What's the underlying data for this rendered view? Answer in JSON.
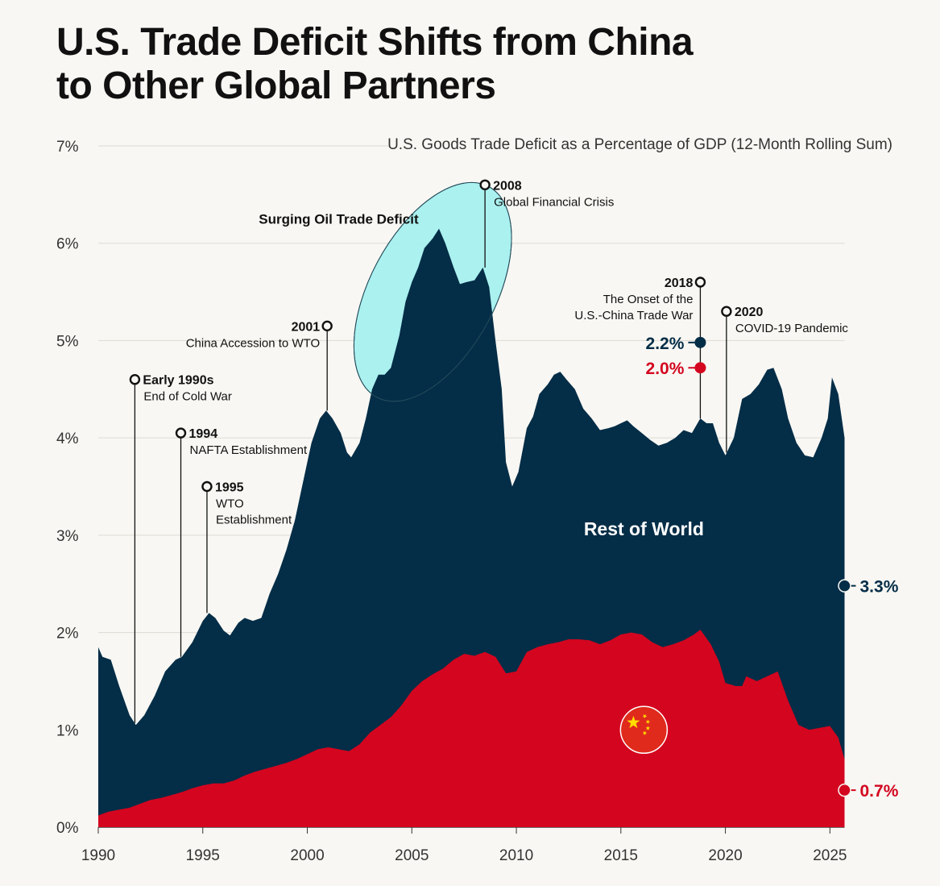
{
  "title_lines": [
    "U.S. Trade Deficit Shifts from China",
    "to Other Global Partners"
  ],
  "colors": {
    "background": "#f8f7f3",
    "rest_of_world": "#042d47",
    "china": "#d4051f",
    "oil_highlight": "#a7f1ee",
    "grid": "#dedbd3"
  },
  "chart_data": {
    "type": "area",
    "subtitle": "U.S. Goods Trade Deficit as a Percentage of GDP (12-Month Rolling Sum)",
    "ylim": [
      0,
      7
    ],
    "xlim": [
      1990,
      2025.7
    ],
    "y_ticks": [
      {
        "value": 0,
        "label": "0%"
      },
      {
        "value": 1,
        "label": "1%"
      },
      {
        "value": 2,
        "label": "2%"
      },
      {
        "value": 3,
        "label": "3%"
      },
      {
        "value": 4,
        "label": "4%"
      },
      {
        "value": 5,
        "label": "5%"
      },
      {
        "value": 6,
        "label": "6%"
      },
      {
        "value": 7,
        "label": "7%"
      }
    ],
    "x_ticks": [
      {
        "value": 1990,
        "label": "1990"
      },
      {
        "value": 1995,
        "label": "1995"
      },
      {
        "value": 2000,
        "label": "2000"
      },
      {
        "value": 2005,
        "label": "2005"
      },
      {
        "value": 2010,
        "label": "2010"
      },
      {
        "value": 2015,
        "label": "2015"
      },
      {
        "value": 2020,
        "label": "2020"
      },
      {
        "value": 2025,
        "label": "2025"
      }
    ],
    "series": [
      {
        "name": "Total (Rest of World + China)",
        "label": "Rest of World",
        "points": [
          [
            1990.0,
            1.85
          ],
          [
            1990.2,
            1.75
          ],
          [
            1990.6,
            1.72
          ],
          [
            1991.0,
            1.45
          ],
          [
            1991.5,
            1.15
          ],
          [
            1991.8,
            1.05
          ],
          [
            1992.2,
            1.15
          ],
          [
            1992.7,
            1.35
          ],
          [
            1993.2,
            1.6
          ],
          [
            1993.7,
            1.72
          ],
          [
            1994.0,
            1.75
          ],
          [
            1994.5,
            1.9
          ],
          [
            1995.0,
            2.12
          ],
          [
            1995.3,
            2.2
          ],
          [
            1995.6,
            2.15
          ],
          [
            1996.0,
            2.02
          ],
          [
            1996.3,
            1.97
          ],
          [
            1996.7,
            2.1
          ],
          [
            1997.0,
            2.15
          ],
          [
            1997.4,
            2.12
          ],
          [
            1997.8,
            2.15
          ],
          [
            1998.2,
            2.4
          ],
          [
            1998.6,
            2.6
          ],
          [
            1999.0,
            2.85
          ],
          [
            1999.4,
            3.15
          ],
          [
            1999.8,
            3.55
          ],
          [
            2000.2,
            3.95
          ],
          [
            2000.6,
            4.2
          ],
          [
            2000.9,
            4.28
          ],
          [
            2001.2,
            4.2
          ],
          [
            2001.6,
            4.05
          ],
          [
            2001.9,
            3.85
          ],
          [
            2002.1,
            3.8
          ],
          [
            2002.5,
            3.95
          ],
          [
            2002.8,
            4.2
          ],
          [
            2003.1,
            4.5
          ],
          [
            2003.4,
            4.65
          ],
          [
            2003.7,
            4.65
          ],
          [
            2004.0,
            4.72
          ],
          [
            2004.4,
            5.05
          ],
          [
            2004.7,
            5.4
          ],
          [
            2005.0,
            5.6
          ],
          [
            2005.3,
            5.75
          ],
          [
            2005.6,
            5.95
          ],
          [
            2006.0,
            6.05
          ],
          [
            2006.3,
            6.15
          ],
          [
            2006.6,
            6.0
          ],
          [
            2007.0,
            5.75
          ],
          [
            2007.3,
            5.58
          ],
          [
            2007.6,
            5.6
          ],
          [
            2008.0,
            5.62
          ],
          [
            2008.4,
            5.75
          ],
          [
            2008.7,
            5.55
          ],
          [
            2009.0,
            5.0
          ],
          [
            2009.3,
            4.5
          ],
          [
            2009.5,
            3.75
          ],
          [
            2009.8,
            3.5
          ],
          [
            2010.1,
            3.65
          ],
          [
            2010.5,
            4.1
          ],
          [
            2010.8,
            4.22
          ],
          [
            2011.1,
            4.45
          ],
          [
            2011.5,
            4.55
          ],
          [
            2011.8,
            4.65
          ],
          [
            2012.1,
            4.68
          ],
          [
            2012.4,
            4.6
          ],
          [
            2012.8,
            4.5
          ],
          [
            2013.2,
            4.3
          ],
          [
            2013.6,
            4.2
          ],
          [
            2014.0,
            4.08
          ],
          [
            2014.4,
            4.1
          ],
          [
            2014.7,
            4.12
          ],
          [
            2015.0,
            4.15
          ],
          [
            2015.3,
            4.18
          ],
          [
            2015.6,
            4.12
          ],
          [
            2016.0,
            4.05
          ],
          [
            2016.4,
            3.98
          ],
          [
            2016.8,
            3.92
          ],
          [
            2017.2,
            3.95
          ],
          [
            2017.6,
            4.0
          ],
          [
            2018.0,
            4.08
          ],
          [
            2018.4,
            4.05
          ],
          [
            2018.8,
            4.2
          ],
          [
            2019.1,
            4.15
          ],
          [
            2019.4,
            4.15
          ],
          [
            2019.7,
            3.95
          ],
          [
            2020.0,
            3.82
          ],
          [
            2020.4,
            4.0
          ],
          [
            2020.8,
            4.4
          ],
          [
            2021.2,
            4.45
          ],
          [
            2021.6,
            4.55
          ],
          [
            2022.0,
            4.7
          ],
          [
            2022.3,
            4.72
          ],
          [
            2022.7,
            4.5
          ],
          [
            2023.0,
            4.2
          ],
          [
            2023.4,
            3.95
          ],
          [
            2023.8,
            3.82
          ],
          [
            2024.2,
            3.8
          ],
          [
            2024.6,
            4.0
          ],
          [
            2024.9,
            4.2
          ],
          [
            2025.1,
            4.62
          ],
          [
            2025.4,
            4.45
          ],
          [
            2025.7,
            4.0
          ]
        ]
      },
      {
        "name": "China",
        "points": [
          [
            1990.0,
            0.12
          ],
          [
            1990.5,
            0.16
          ],
          [
            1991.0,
            0.18
          ],
          [
            1991.5,
            0.2
          ],
          [
            1992.0,
            0.24
          ],
          [
            1992.5,
            0.28
          ],
          [
            1993.0,
            0.3
          ],
          [
            1993.5,
            0.33
          ],
          [
            1994.0,
            0.36
          ],
          [
            1994.5,
            0.4
          ],
          [
            1995.0,
            0.43
          ],
          [
            1995.5,
            0.45
          ],
          [
            1996.0,
            0.45
          ],
          [
            1996.5,
            0.48
          ],
          [
            1997.0,
            0.53
          ],
          [
            1997.5,
            0.57
          ],
          [
            1998.0,
            0.6
          ],
          [
            1998.5,
            0.63
          ],
          [
            1999.0,
            0.66
          ],
          [
            1999.5,
            0.7
          ],
          [
            2000.0,
            0.75
          ],
          [
            2000.5,
            0.8
          ],
          [
            2001.0,
            0.82
          ],
          [
            2001.5,
            0.8
          ],
          [
            2002.0,
            0.78
          ],
          [
            2002.5,
            0.85
          ],
          [
            2003.0,
            0.97
          ],
          [
            2003.5,
            1.05
          ],
          [
            2004.0,
            1.13
          ],
          [
            2004.5,
            1.25
          ],
          [
            2005.0,
            1.4
          ],
          [
            2005.5,
            1.5
          ],
          [
            2006.0,
            1.57
          ],
          [
            2006.5,
            1.63
          ],
          [
            2007.0,
            1.72
          ],
          [
            2007.5,
            1.78
          ],
          [
            2008.0,
            1.76
          ],
          [
            2008.5,
            1.8
          ],
          [
            2009.0,
            1.75
          ],
          [
            2009.5,
            1.58
          ],
          [
            2010.0,
            1.6
          ],
          [
            2010.5,
            1.8
          ],
          [
            2011.0,
            1.85
          ],
          [
            2011.5,
            1.88
          ],
          [
            2012.0,
            1.9
          ],
          [
            2012.5,
            1.93
          ],
          [
            2013.0,
            1.93
          ],
          [
            2013.5,
            1.92
          ],
          [
            2014.0,
            1.88
          ],
          [
            2014.5,
            1.92
          ],
          [
            2015.0,
            1.98
          ],
          [
            2015.5,
            2.0
          ],
          [
            2016.0,
            1.98
          ],
          [
            2016.5,
            1.9
          ],
          [
            2017.0,
            1.85
          ],
          [
            2017.5,
            1.88
          ],
          [
            2018.0,
            1.92
          ],
          [
            2018.5,
            1.98
          ],
          [
            2018.8,
            2.03
          ],
          [
            2019.3,
            1.88
          ],
          [
            2019.7,
            1.7
          ],
          [
            2020.0,
            1.48
          ],
          [
            2020.5,
            1.45
          ],
          [
            2020.8,
            1.45
          ],
          [
            2021.0,
            1.55
          ],
          [
            2021.5,
            1.5
          ],
          [
            2022.0,
            1.55
          ],
          [
            2022.5,
            1.6
          ],
          [
            2023.0,
            1.3
          ],
          [
            2023.5,
            1.05
          ],
          [
            2024.0,
            1.0
          ],
          [
            2024.5,
            1.02
          ],
          [
            2025.0,
            1.04
          ],
          [
            2025.4,
            0.92
          ],
          [
            2025.7,
            0.7
          ]
        ]
      }
    ],
    "regions": [
      {
        "label": "Rest of World",
        "x": 2016.1,
        "y": 3.0
      },
      {
        "label": "Surging Oil Trade Deficit",
        "x": 2006.0,
        "y": 5.5,
        "x_label": 2001.5,
        "y_label": 6.2
      }
    ],
    "annotations": [
      {
        "year": 1991.75,
        "top": 4.6,
        "bottom": 1.07,
        "title": "Early 1990s",
        "lines": [
          "End of Cold War"
        ]
      },
      {
        "year": 1993.95,
        "top": 4.05,
        "bottom": 1.75,
        "title": "1994",
        "lines": [
          "NAFTA Establishment"
        ]
      },
      {
        "year": 1995.2,
        "top": 3.5,
        "bottom": 2.2,
        "title": "1995",
        "lines": [
          "WTO",
          "Establishment"
        ]
      },
      {
        "year": 2000.95,
        "top": 5.15,
        "bottom": 4.28,
        "title": "2001",
        "lines": [
          "China Accession to WTO"
        ],
        "side": "left"
      },
      {
        "year": 2008.5,
        "top": 6.6,
        "bottom": 5.75,
        "title": "2008",
        "lines": [
          "Global Financial Crisis"
        ]
      },
      {
        "year": 2018.8,
        "top": 5.6,
        "bottom": 4.2,
        "title": "2018",
        "lines": [
          "The Onset of the",
          "U.S.-China Trade War"
        ],
        "side": "left"
      },
      {
        "year": 2020.05,
        "top": 5.3,
        "bottom": 3.85,
        "title": "2020",
        "lines": [
          "COVID-19 Pandemic"
        ]
      }
    ],
    "markers": [
      {
        "label": "2.2%",
        "year": 2018.8,
        "y": 4.98,
        "color": "#042d47",
        "side": "left"
      },
      {
        "label": "2.0%",
        "year": 2018.8,
        "y": 4.72,
        "color": "#d4051f",
        "side": "left"
      },
      {
        "label": "3.3%",
        "year": 2025.7,
        "y": 2.48,
        "color": "#042d47",
        "side": "right"
      },
      {
        "label": "0.7%",
        "year": 2025.7,
        "y": 0.38,
        "color": "#d4051f",
        "side": "right"
      }
    ],
    "flag": {
      "name": "china-flag",
      "year": 2016.1,
      "y": 1.0
    }
  }
}
